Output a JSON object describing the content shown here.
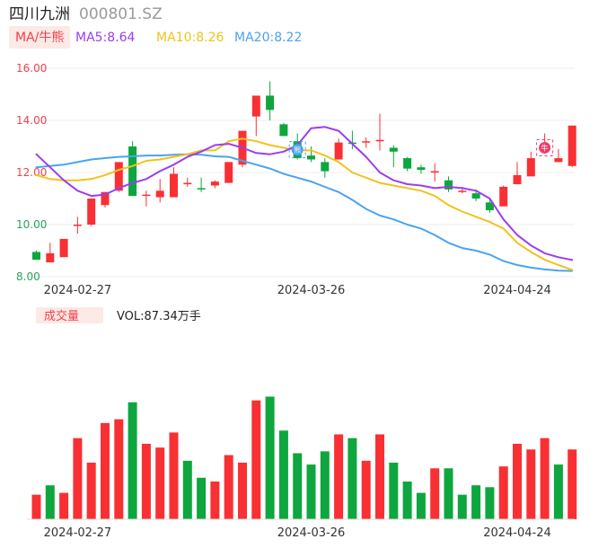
{
  "header": {
    "stock_name": "四川九洲",
    "stock_code": "000801.SZ"
  },
  "colors": {
    "up": "#f83034",
    "down": "#0ea63e",
    "ma5": "#9b3df2",
    "ma10": "#f2c21b",
    "ma20": "#4aa3ef",
    "grid": "#ececec",
    "axis_text": "#333333",
    "price_label": "#f0424a",
    "price_label_low": "#27a35a",
    "badge_bg": "#fde9e6"
  },
  "legend_price": {
    "indicator": "MA/牛熊",
    "ma5": "MA5:8.64",
    "ma10": "MA10:8.26",
    "ma20": "MA20:8.22"
  },
  "legend_volume": {
    "indicator": "成交量",
    "vol": "VOL:87.34万手"
  },
  "markers": {
    "bear_badge": "熊",
    "bull_badge": "牛"
  },
  "chart_data": [
    {
      "type": "candlestick",
      "yticks": [
        "16.00",
        "14.00",
        "12.00",
        "10.00",
        "8.00"
      ],
      "ylim": [
        8.0,
        16.0
      ],
      "xtick_labels": [
        {
          "index": 3,
          "label": "2024-02-27"
        },
        {
          "index": 20,
          "label": "2024-03-26"
        },
        {
          "index": 35,
          "label": "2024-04-24"
        }
      ],
      "candles": [
        {
          "o": 8.95,
          "h": 9.0,
          "l": 8.65,
          "c": 8.65
        },
        {
          "o": 8.55,
          "h": 9.3,
          "l": 8.55,
          "c": 8.9
        },
        {
          "o": 8.75,
          "h": 9.45,
          "l": 8.75,
          "c": 9.45
        },
        {
          "o": 10.0,
          "h": 10.3,
          "l": 9.65,
          "c": 10.0
        },
        {
          "o": 10.0,
          "h": 11.0,
          "l": 9.95,
          "c": 11.0
        },
        {
          "o": 10.75,
          "h": 11.25,
          "l": 10.65,
          "c": 11.25
        },
        {
          "o": 11.3,
          "h": 12.4,
          "l": 11.25,
          "c": 12.4
        },
        {
          "o": 13.0,
          "h": 13.2,
          "l": 11.1,
          "c": 11.1
        },
        {
          "o": 11.15,
          "h": 11.3,
          "l": 10.7,
          "c": 11.15
        },
        {
          "o": 11.05,
          "h": 11.75,
          "l": 10.85,
          "c": 11.3
        },
        {
          "o": 11.05,
          "h": 12.2,
          "l": 11.05,
          "c": 11.95
        },
        {
          "o": 11.55,
          "h": 11.8,
          "l": 11.45,
          "c": 11.6
        },
        {
          "o": 11.4,
          "h": 11.8,
          "l": 11.25,
          "c": 11.35
        },
        {
          "o": 11.5,
          "h": 11.7,
          "l": 11.4,
          "c": 11.65
        },
        {
          "o": 11.6,
          "h": 12.4,
          "l": 11.6,
          "c": 12.4
        },
        {
          "o": 12.3,
          "h": 13.6,
          "l": 12.2,
          "c": 13.6
        },
        {
          "o": 14.15,
          "h": 14.95,
          "l": 13.4,
          "c": 14.95
        },
        {
          "o": 14.95,
          "h": 15.5,
          "l": 14.0,
          "c": 14.4
        },
        {
          "o": 13.85,
          "h": 13.9,
          "l": 13.4,
          "c": 13.4
        },
        {
          "o": 13.2,
          "h": 13.5,
          "l": 12.5,
          "c": 12.55
        },
        {
          "o": 12.65,
          "h": 13.0,
          "l": 12.4,
          "c": 12.5
        },
        {
          "o": 12.4,
          "h": 12.55,
          "l": 11.8,
          "c": 12.05
        },
        {
          "o": 12.5,
          "h": 13.3,
          "l": 12.5,
          "c": 13.15
        },
        {
          "o": 13.15,
          "h": 13.6,
          "l": 12.9,
          "c": 13.1
        },
        {
          "o": 13.15,
          "h": 13.35,
          "l": 12.95,
          "c": 13.2
        },
        {
          "o": 13.25,
          "h": 14.25,
          "l": 12.85,
          "c": 13.25
        },
        {
          "o": 12.95,
          "h": 13.05,
          "l": 12.2,
          "c": 12.8
        },
        {
          "o": 12.55,
          "h": 12.6,
          "l": 12.05,
          "c": 12.15
        },
        {
          "o": 12.2,
          "h": 12.3,
          "l": 11.95,
          "c": 12.1
        },
        {
          "o": 12.0,
          "h": 12.35,
          "l": 11.65,
          "c": 12.05
        },
        {
          "o": 11.7,
          "h": 11.85,
          "l": 11.25,
          "c": 11.35
        },
        {
          "o": 11.25,
          "h": 11.45,
          "l": 11.2,
          "c": 11.3
        },
        {
          "o": 11.2,
          "h": 11.35,
          "l": 10.9,
          "c": 11.0
        },
        {
          "o": 10.85,
          "h": 11.0,
          "l": 10.45,
          "c": 10.55
        },
        {
          "o": 10.7,
          "h": 11.5,
          "l": 10.7,
          "c": 11.45
        },
        {
          "o": 11.55,
          "h": 12.4,
          "l": 11.55,
          "c": 11.9
        },
        {
          "o": 11.85,
          "h": 12.8,
          "l": 11.85,
          "c": 12.55
        },
        {
          "o": 12.95,
          "h": 13.5,
          "l": 12.95,
          "c": 12.95
        },
        {
          "o": 12.4,
          "h": 12.9,
          "l": 12.4,
          "c": 12.55
        },
        {
          "o": 12.25,
          "h": 13.8,
          "l": 12.2,
          "c": 13.8
        }
      ],
      "ma5": [
        12.7,
        12.2,
        11.7,
        11.3,
        11.1,
        11.15,
        11.4,
        11.6,
        11.75,
        12.05,
        12.3,
        12.6,
        12.8,
        13.05,
        13.1,
        12.95,
        12.75,
        12.7,
        12.8,
        13.05,
        13.7,
        13.75,
        13.6,
        13.1,
        12.6,
        12.0,
        11.7,
        11.55,
        11.5,
        11.4,
        11.45,
        11.4,
        11.3,
        11.0,
        10.2,
        9.6,
        9.2,
        8.9,
        8.75,
        8.64
      ],
      "ma10": [
        11.9,
        11.75,
        11.7,
        11.7,
        11.75,
        11.9,
        12.1,
        12.25,
        12.45,
        12.5,
        12.6,
        12.7,
        12.85,
        12.85,
        13.2,
        13.3,
        13.2,
        13.05,
        12.95,
        12.85,
        12.85,
        12.65,
        12.4,
        12.0,
        11.8,
        11.6,
        11.5,
        11.4,
        11.3,
        11.1,
        10.75,
        10.5,
        10.3,
        10.1,
        9.85,
        9.3,
        8.95,
        8.65,
        8.45,
        8.26
      ],
      "ma20": [
        12.2,
        12.25,
        12.3,
        12.4,
        12.5,
        12.55,
        12.6,
        12.62,
        12.65,
        12.65,
        12.68,
        12.7,
        12.68,
        12.62,
        12.6,
        12.45,
        12.3,
        12.15,
        11.95,
        11.8,
        11.65,
        11.45,
        11.25,
        10.95,
        10.6,
        10.35,
        10.2,
        10.0,
        9.85,
        9.6,
        9.3,
        9.1,
        9.0,
        8.85,
        8.6,
        8.45,
        8.35,
        8.28,
        8.23,
        8.22
      ],
      "bear_marker_index": 19,
      "bull_marker_index": 37
    },
    {
      "type": "bar",
      "series_name": "VOL",
      "ylim": [
        0,
        100
      ],
      "values": [
        13,
        18,
        14,
        43,
        30,
        51,
        53,
        62,
        40,
        38,
        46,
        31,
        22,
        20,
        34,
        30,
        63,
        65,
        47,
        35,
        29,
        36,
        45,
        43,
        31,
        45,
        30,
        20,
        14,
        27,
        27,
        13,
        18,
        17,
        28,
        40,
        37,
        43,
        29,
        37
      ],
      "directions": [
        "up",
        "down",
        "up",
        "up",
        "up",
        "up",
        "up",
        "down",
        "up",
        "up",
        "up",
        "down",
        "down",
        "up",
        "up",
        "up",
        "up",
        "down",
        "down",
        "down",
        "down",
        "down",
        "up",
        "down",
        "up",
        "up",
        "down",
        "down",
        "down",
        "up",
        "down",
        "down",
        "down",
        "down",
        "up",
        "up",
        "up",
        "up",
        "down",
        "up"
      ],
      "xtick_labels": [
        {
          "index": 3,
          "label": "2024-02-27"
        },
        {
          "index": 20,
          "label": "2024-03-26"
        },
        {
          "index": 35,
          "label": "2024-04-24"
        }
      ]
    }
  ]
}
